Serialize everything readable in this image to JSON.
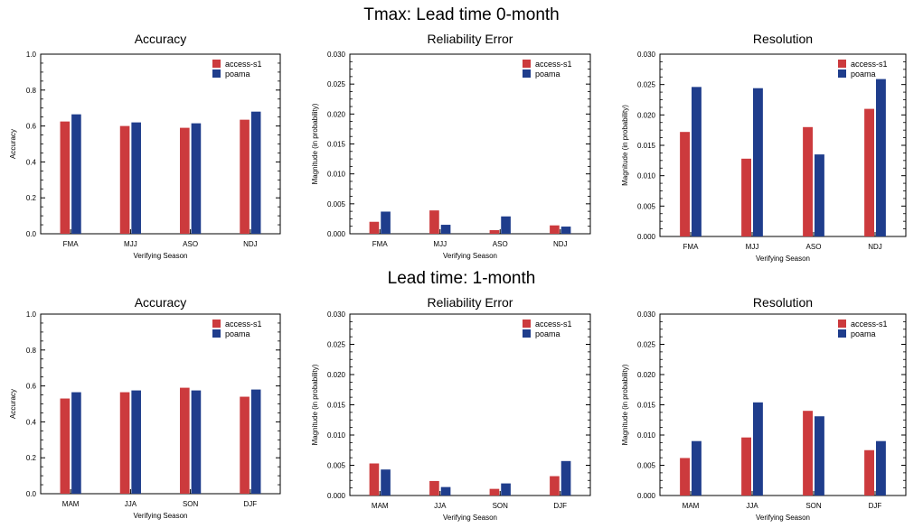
{
  "rows": [
    {
      "title": "Tmax: Lead time 0-month"
    },
    {
      "title": "Lead time: 1-month"
    }
  ],
  "colors": {
    "access": "#cc3a3d",
    "poama": "#1f3d8c"
  },
  "chart_data": [
    {
      "type": "bar",
      "title": "Accuracy",
      "ylabel": "Accuracy",
      "xlabel": "Verifying Season",
      "categories": [
        "FMA",
        "MJJ",
        "ASO",
        "NDJ"
      ],
      "ylim": [
        0,
        1.0
      ],
      "yticks": [
        "0.0",
        "0.2",
        "0.4",
        "0.6",
        "0.8",
        "1.0"
      ],
      "legend_position": "top-right",
      "series": [
        {
          "name": "access-s1",
          "values": [
            0.625,
            0.6,
            0.59,
            0.635
          ]
        },
        {
          "name": "poama",
          "values": [
            0.665,
            0.62,
            0.615,
            0.68
          ]
        }
      ]
    },
    {
      "type": "bar",
      "title": "Reliability Error",
      "ylabel": "Magnitude (in probability)",
      "xlabel": "Verifying Season",
      "categories": [
        "FMA",
        "MJJ",
        "ASO",
        "NDJ"
      ],
      "ylim": [
        0,
        0.03
      ],
      "yticks": [
        "0.000",
        "0.005",
        "0.010",
        "0.015",
        "0.020",
        "0.025",
        "0.030"
      ],
      "legend_position": "top-right",
      "series": [
        {
          "name": "access-s1",
          "values": [
            0.002,
            0.0039,
            0.0006,
            0.0014
          ]
        },
        {
          "name": "poama",
          "values": [
            0.0037,
            0.0015,
            0.0029,
            0.0012
          ]
        }
      ]
    },
    {
      "type": "bar",
      "title": "Resolution",
      "ylabel": "Magnitude (in probability)",
      "xlabel": "Verifying Season",
      "categories": [
        "FMA",
        "MJJ",
        "ASO",
        "NDJ"
      ],
      "ylim": [
        0,
        0.03
      ],
      "yticks": [
        "0.000",
        "0.005",
        "0.010",
        "0.015",
        "0.020",
        "0.025",
        "0.030"
      ],
      "legend_position": "top-right",
      "series": [
        {
          "name": "access-s1",
          "values": [
            0.0172,
            0.0128,
            0.018,
            0.021
          ]
        },
        {
          "name": "poama",
          "values": [
            0.0246,
            0.0244,
            0.0135,
            0.0259
          ]
        }
      ]
    },
    {
      "type": "bar",
      "title": "Accuracy",
      "ylabel": "Accuracy",
      "xlabel": "Verifying Season",
      "categories": [
        "MAM",
        "JJA",
        "SON",
        "DJF"
      ],
      "ylim": [
        0,
        1.0
      ],
      "yticks": [
        "0.0",
        "0.2",
        "0.4",
        "0.6",
        "0.8",
        "1.0"
      ],
      "legend_position": "top-right",
      "series": [
        {
          "name": "access-s1",
          "values": [
            0.53,
            0.565,
            0.59,
            0.54
          ]
        },
        {
          "name": "poama",
          "values": [
            0.565,
            0.575,
            0.575,
            0.58
          ]
        }
      ]
    },
    {
      "type": "bar",
      "title": "Reliability Error",
      "ylabel": "Magnitude (in probability)",
      "xlabel": "Verifying Season",
      "categories": [
        "MAM",
        "JJA",
        "SON",
        "DJF"
      ],
      "ylim": [
        0,
        0.03
      ],
      "yticks": [
        "0.000",
        "0.005",
        "0.010",
        "0.015",
        "0.020",
        "0.025",
        "0.030"
      ],
      "legend_position": "top-right",
      "series": [
        {
          "name": "access-s1",
          "values": [
            0.0053,
            0.0024,
            0.0011,
            0.0032
          ]
        },
        {
          "name": "poama",
          "values": [
            0.0043,
            0.0014,
            0.002,
            0.0057
          ]
        }
      ]
    },
    {
      "type": "bar",
      "title": "Resolution",
      "ylabel": "Magnitude (in probability)",
      "xlabel": "Verifying Season",
      "categories": [
        "MAM",
        "JJA",
        "SON",
        "DJF"
      ],
      "ylim": [
        0,
        0.03
      ],
      "yticks": [
        "0.000",
        "0.005",
        "0.010",
        "0.015",
        "0.020",
        "0.025",
        "0.030"
      ],
      "legend_position": "top-right",
      "series": [
        {
          "name": "access-s1",
          "values": [
            0.0062,
            0.0096,
            0.014,
            0.0075
          ]
        },
        {
          "name": "poama",
          "values": [
            0.009,
            0.0154,
            0.0131,
            0.009
          ]
        }
      ]
    }
  ]
}
